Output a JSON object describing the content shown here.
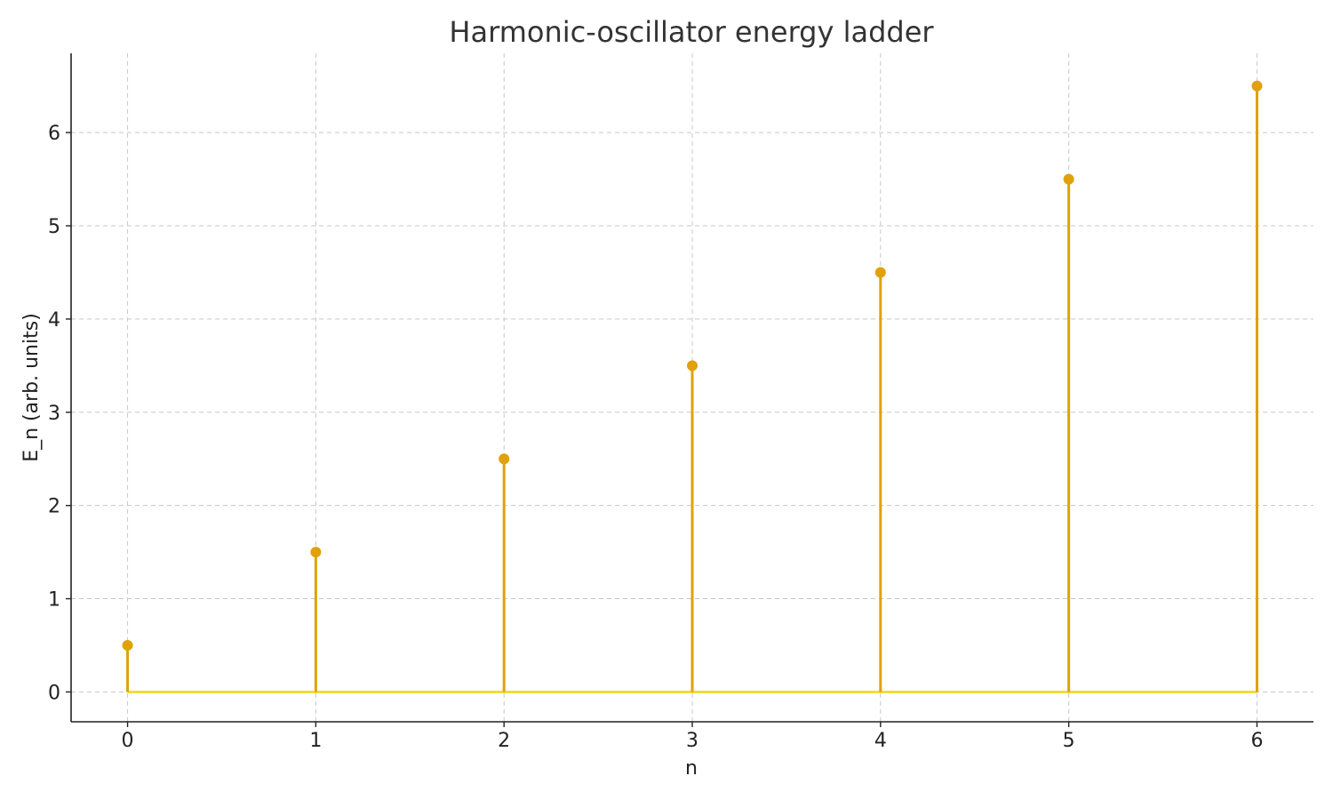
{
  "chart_data": {
    "type": "stem",
    "title": "Harmonic-oscillator energy ladder",
    "xlabel": "n",
    "ylabel": "E_n (arb. units)",
    "x": [
      0,
      1,
      2,
      3,
      4,
      5,
      6
    ],
    "y": [
      0.5,
      1.5,
      2.5,
      3.5,
      4.5,
      5.5,
      6.5
    ],
    "xticks": [
      0,
      1,
      2,
      3,
      4,
      5,
      6
    ],
    "yticks": [
      0,
      1,
      2,
      3,
      4,
      5,
      6
    ],
    "xlim": [
      -0.3,
      6.3
    ],
    "ylim": [
      -0.32,
      6.85
    ],
    "baseline": 0,
    "grid": true,
    "colors": {
      "stem": "#e0a10b",
      "marker": "#e0a10b",
      "baseline": "#f0dc3c"
    }
  }
}
